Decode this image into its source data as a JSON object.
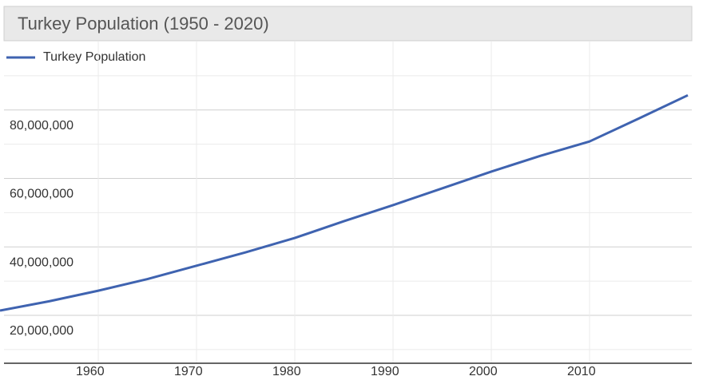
{
  "chart_data": {
    "type": "line",
    "title": "Turkey Population (1950 - 2020)",
    "x": [
      1950,
      1955,
      1960,
      1965,
      1970,
      1975,
      1980,
      1985,
      1990,
      1995,
      2000,
      2005,
      2010,
      2015,
      2020
    ],
    "series": [
      {
        "name": "Turkey Population",
        "color": "#3f63b0",
        "values": [
          21400000,
          24100000,
          27200000,
          30600000,
          34500000,
          38400000,
          42600000,
          47500000,
          52200000,
          57100000,
          62000000,
          66600000,
          70800000,
          77500000,
          84300000
        ]
      }
    ],
    "xlim": [
      1950,
      2020
    ],
    "xticks": [
      1960,
      1970,
      1980,
      1990,
      2000,
      2010
    ],
    "ylim": [
      6000000,
      100000000
    ],
    "yticks": [
      {
        "value": 20000000,
        "label": "20,000,000"
      },
      {
        "value": 40000000,
        "label": "40,000,000"
      },
      {
        "value": 60000000,
        "label": "60,000,000"
      },
      {
        "value": 80000000,
        "label": "80,000,000"
      }
    ],
    "minor_yticks": [
      10000000,
      30000000,
      50000000,
      70000000,
      90000000
    ],
    "grid": true
  }
}
